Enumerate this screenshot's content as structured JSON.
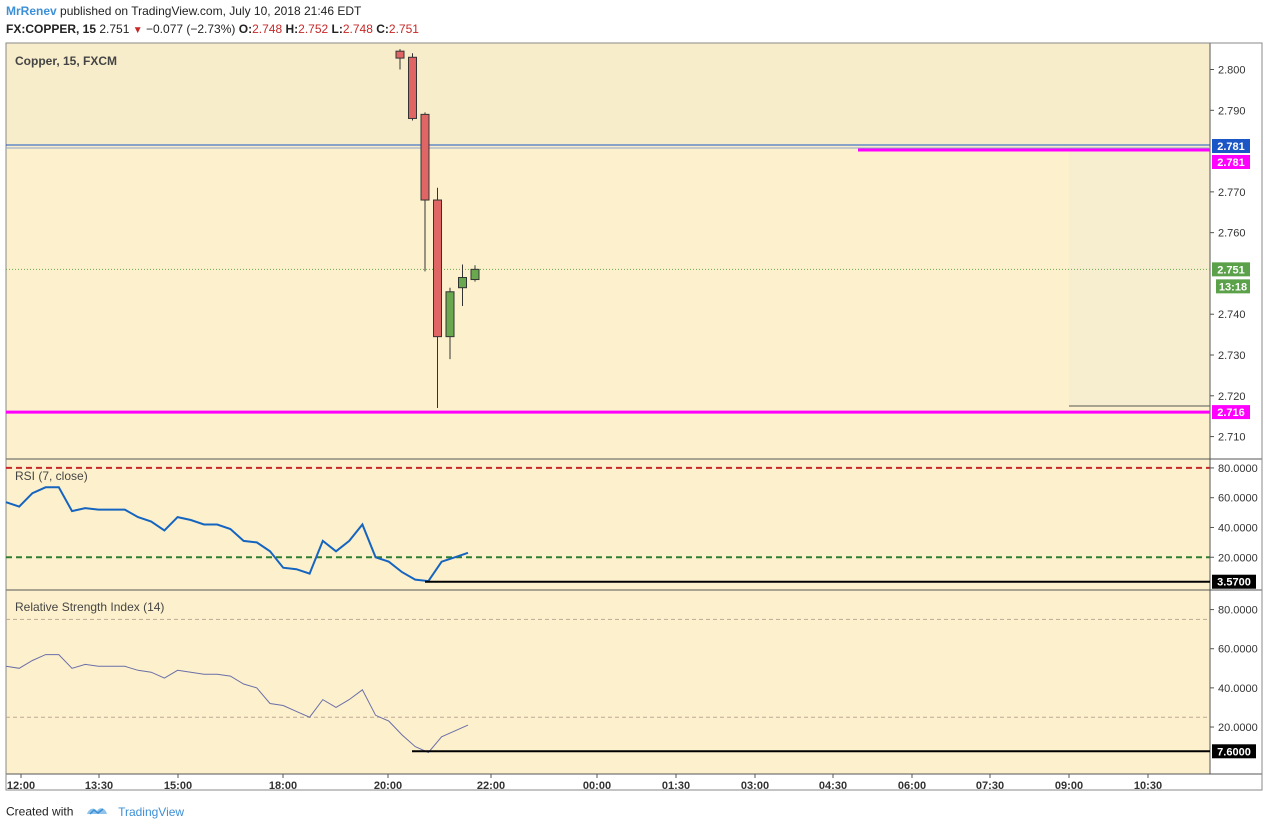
{
  "header": {
    "author": "MrRenev",
    "published": "published on TradingView.com, July 10, 2018 21:46 EDT"
  },
  "quote": {
    "symbol": "FX:COPPER, 15",
    "last": "2.751",
    "change": "−0.077 (−2.73%)",
    "o_label": "O:",
    "o": "2.748",
    "h_label": "H:",
    "h": "2.752",
    "l_label": "L:",
    "l": "2.748",
    "c_label": "C:",
    "c": "2.751"
  },
  "footer": {
    "created": "Created with",
    "brand": "TradingView"
  },
  "colors": {
    "pane_bg": "#fdf1cd",
    "zone_bg": "#f8edcb",
    "up": "#6aa84f",
    "down": "#e06666",
    "magenta": "#ff00ff",
    "blue": "#1a56c6",
    "rsi_line": "#1565c0",
    "rsi2_line": "#6b6fa8",
    "red_dash": "#c62828",
    "green_dash": "#2e7d32",
    "grey_dash": "#bfa898"
  },
  "chart_data": [
    {
      "type": "candlestick",
      "title": "Copper, 15, FXCM",
      "ylim": [
        2.7045,
        2.8065
      ],
      "yticks": [
        "2.800",
        "2.790",
        "2.770",
        "2.760",
        "2.740",
        "2.730",
        "2.720",
        "2.710"
      ],
      "ytick_values": [
        2.8,
        2.79,
        2.77,
        2.76,
        2.74,
        2.73,
        2.72,
        2.71
      ],
      "x_labels": [
        "12:00",
        "13:30",
        "15:00",
        "18:00",
        "20:00",
        "22:00",
        "00:00",
        "01:30",
        "03:00",
        "04:30",
        "06:00",
        "07:30",
        "09:00",
        "10:30"
      ],
      "candles": [
        {
          "o": 2.8045,
          "h": 2.805,
          "l": 2.8,
          "c": 2.8028
        },
        {
          "o": 2.803,
          "h": 2.804,
          "l": 2.7875,
          "c": 2.788
        },
        {
          "o": 2.789,
          "h": 2.7895,
          "l": 2.7505,
          "c": 2.768
        },
        {
          "o": 2.768,
          "h": 2.771,
          "l": 2.717,
          "c": 2.7345
        },
        {
          "o": 2.7345,
          "h": 2.7465,
          "l": 2.729,
          "c": 2.7455
        },
        {
          "o": 2.7465,
          "h": 2.7522,
          "l": 2.742,
          "c": 2.749
        },
        {
          "o": 2.7485,
          "h": 2.752,
          "l": 2.748,
          "c": 2.751
        }
      ],
      "levels": [
        {
          "value": 2.781,
          "label": "2.781",
          "color": "#1a56c6"
        },
        {
          "value": 2.781,
          "label": "2.781",
          "color": "#ff00ff"
        },
        {
          "value": 2.716,
          "label": "2.716",
          "color": "#ff00ff"
        }
      ],
      "last_price": {
        "value": 2.751,
        "label": "2.751",
        "countdown": "13:18"
      },
      "box_low": 2.7175
    },
    {
      "type": "line",
      "title": "RSI (7, close)",
      "ylim": [
        -2,
        86
      ],
      "yticks": [
        "80.0000",
        "60.0000",
        "40.0000",
        "20.0000"
      ],
      "ytick_values": [
        80,
        60,
        40,
        20
      ],
      "upper": 80,
      "lower": 20,
      "values": [
        57,
        54,
        63,
        67,
        67,
        51,
        53,
        52,
        52,
        52,
        47,
        44,
        38,
        47,
        45,
        42,
        42,
        39,
        31,
        30,
        24,
        13,
        12,
        9,
        31,
        24,
        31,
        42,
        20,
        17,
        10,
        5,
        4,
        17,
        20,
        23
      ],
      "marker": {
        "value": 3.57,
        "label": "3.5700"
      }
    },
    {
      "type": "line",
      "title": "Relative Strength Index (14)",
      "ylim": [
        -4,
        90
      ],
      "yticks": [
        "80.0000",
        "60.0000",
        "40.0000",
        "20.0000"
      ],
      "ytick_values": [
        80,
        60,
        40,
        20
      ],
      "upper": 75,
      "lower": 25,
      "values": [
        51,
        50,
        54,
        57,
        57,
        50,
        52,
        51,
        51,
        51,
        49,
        48,
        45,
        49,
        48,
        47,
        47,
        46,
        42,
        40,
        32,
        31,
        28,
        25,
        34,
        30,
        34,
        39,
        26,
        23,
        16,
        10,
        7,
        15,
        18,
        21
      ],
      "marker": {
        "value": 7.6,
        "label": "7.6000"
      }
    }
  ]
}
